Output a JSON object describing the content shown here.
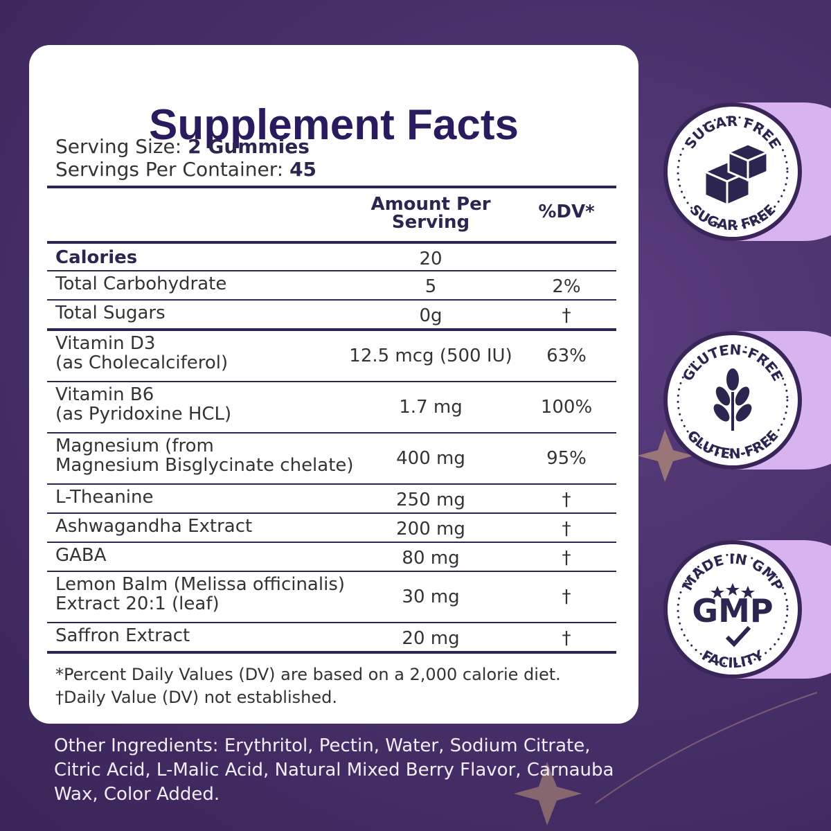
{
  "header": {
    "title": "Supplement Facts"
  },
  "serving": {
    "size_label": "Serving Size:",
    "size_value": "2 Gummies",
    "per_container_label": "Servings Per Container:",
    "per_container_value": "45"
  },
  "table": {
    "columns": [
      "Amount Per Serving",
      "%DV*"
    ],
    "rows": [
      {
        "name_lines": [
          "Calories"
        ],
        "amount": "20"
      },
      {
        "name_lines": [
          "Total Carbohydrate"
        ],
        "amount": "5",
        "dv": "2%"
      },
      {
        "name_lines": [
          "Total Sugars"
        ],
        "amount": "0g",
        "dv": "†"
      },
      {
        "name_lines": [
          "Vitamin D3",
          "(as Cholecalciferol)"
        ],
        "amount": "12.5 mcg (500 IU)",
        "dv": "63%"
      },
      {
        "name_lines": [
          "Vitamin B6",
          "(as Pyridoxine HCL)"
        ],
        "amount": "1.7 mg",
        "dv": "100%"
      },
      {
        "name_lines": [
          "Magnesium (from",
          "Magnesium Bisglycinate chelate)"
        ],
        "amount": "400 mg",
        "dv": "95%"
      },
      {
        "name_lines": [
          "L-Theanine"
        ],
        "amount": "250 mg",
        "dv": "†"
      },
      {
        "name_lines": [
          "Ashwagandha Extract"
        ],
        "amount": "200 mg",
        "dv": "†"
      },
      {
        "name_lines": [
          "GABA"
        ],
        "amount": "80 mg",
        "dv": "†"
      },
      {
        "name_lines": [
          "Lemon Balm (Melissa officinalis)",
          "Extract 20:1 (leaf)"
        ],
        "amount": "30 mg",
        "dv": "†"
      },
      {
        "name_lines": [
          "Saffron Extract"
        ],
        "amount": "20 mg",
        "dv": "†"
      }
    ]
  },
  "footnotes": [
    "*Percent Daily Values (DV) are based on a 2,000 calorie diet.",
    "†Daily Value (DV) not established."
  ],
  "other_ingredients": [
    "Other Ingredients: Erythritol, Pectin, Water, Sodium Citrate,",
    "Citric Acid, L-Malic Acid, Natural Mixed Berry Flavor, Carnauba",
    "Wax, Color Added."
  ],
  "badges": [
    {
      "top": "SUGAR FREE",
      "bottom": "SUGAR FREE"
    },
    {
      "top": "GLUTEN-FREE",
      "bottom": "GLUTEN-FREE"
    },
    {
      "top": "MADE IN GMP",
      "center": "GMP",
      "bottom": "FACILITY"
    }
  ]
}
